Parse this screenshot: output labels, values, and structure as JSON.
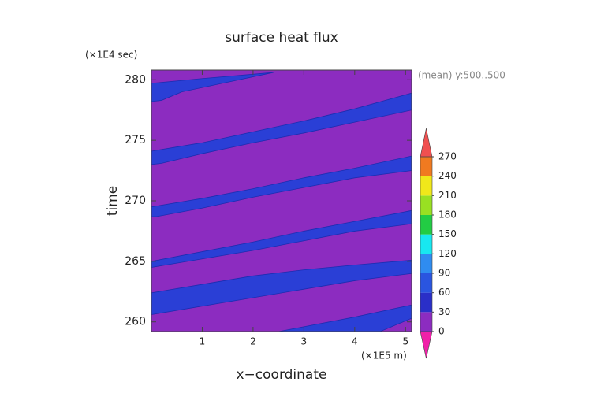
{
  "chart_data": {
    "type": "contour",
    "title": "surface heat flux",
    "y_unit": "(×1E4 sec)",
    "x_unit": "(×1E5 m)",
    "subtitle": "(mean) y:500..500",
    "xlabel": "x−coordinate",
    "ylabel": "time",
    "xlim": [
      0,
      5.12
    ],
    "ylim": [
      259.2,
      280.8
    ],
    "xticks": [
      1,
      2,
      3,
      4,
      5
    ],
    "yticks": [
      260,
      265,
      270,
      275,
      280
    ],
    "background_color": "#8c2cc0",
    "regions": [
      {
        "level": 30,
        "color": "#2a3fd6",
        "x": [
          0,
          0,
          1.0,
          2.4,
          1.5,
          0.6,
          0.2
        ],
        "y": [
          278.2,
          279.7,
          280.1,
          280.6,
          279.8,
          279.0,
          278.3
        ]
      },
      {
        "level": 30,
        "color": "#2a3fd6",
        "x": [
          0,
          0,
          1,
          2,
          3,
          4,
          5.12,
          5.12,
          4,
          3,
          2,
          1,
          0.2
        ],
        "y": [
          273.0,
          274.1,
          274.8,
          275.7,
          276.6,
          277.6,
          278.9,
          277.5,
          276.5,
          275.6,
          274.8,
          273.9,
          273.1
        ]
      },
      {
        "level": 30,
        "color": "#2a3fd6",
        "x": [
          0,
          0,
          1,
          2,
          3,
          4,
          5.12,
          5.12,
          4,
          3,
          2,
          1,
          0.1
        ],
        "y": [
          268.7,
          269.5,
          270.2,
          271.0,
          271.9,
          272.7,
          273.7,
          272.5,
          271.9,
          271.1,
          270.3,
          269.4,
          268.7
        ]
      },
      {
        "level": 30,
        "color": "#2a3fd6",
        "x": [
          0,
          0,
          1,
          2,
          3,
          4,
          5.12,
          5.12,
          4,
          3,
          2,
          1
        ],
        "y": [
          264.5,
          265.0,
          265.8,
          266.6,
          267.5,
          268.3,
          269.2,
          268.1,
          267.5,
          266.7,
          265.9,
          265.2
        ]
      },
      {
        "level": 30,
        "color": "#2a3fd6",
        "x": [
          0,
          0,
          1,
          2,
          3,
          4,
          5.12,
          5.12,
          4,
          3,
          2,
          1
        ],
        "y": [
          260.6,
          262.4,
          263.1,
          263.8,
          264.3,
          264.7,
          265.1,
          264.0,
          263.4,
          262.7,
          262.0,
          261.3
        ]
      },
      {
        "level": 30,
        "color": "#2a3fd6",
        "x": [
          2.5,
          3,
          4,
          5.12,
          5.12,
          4.5
        ],
        "y": [
          259.2,
          259.6,
          260.4,
          261.4,
          260.3,
          259.2
        ]
      }
    ],
    "colorbar": {
      "levels": [
        0,
        30,
        60,
        90,
        120,
        150,
        180,
        210,
        240,
        270
      ],
      "colors": [
        "#8c2cc0",
        "#2a2fc8",
        "#2a55e0",
        "#2f8cf0",
        "#18e8f0",
        "#22cc44",
        "#99e022",
        "#f0e81a",
        "#f07a20"
      ],
      "under_color": "#f020a8",
      "over_color": "#f05050"
    }
  }
}
